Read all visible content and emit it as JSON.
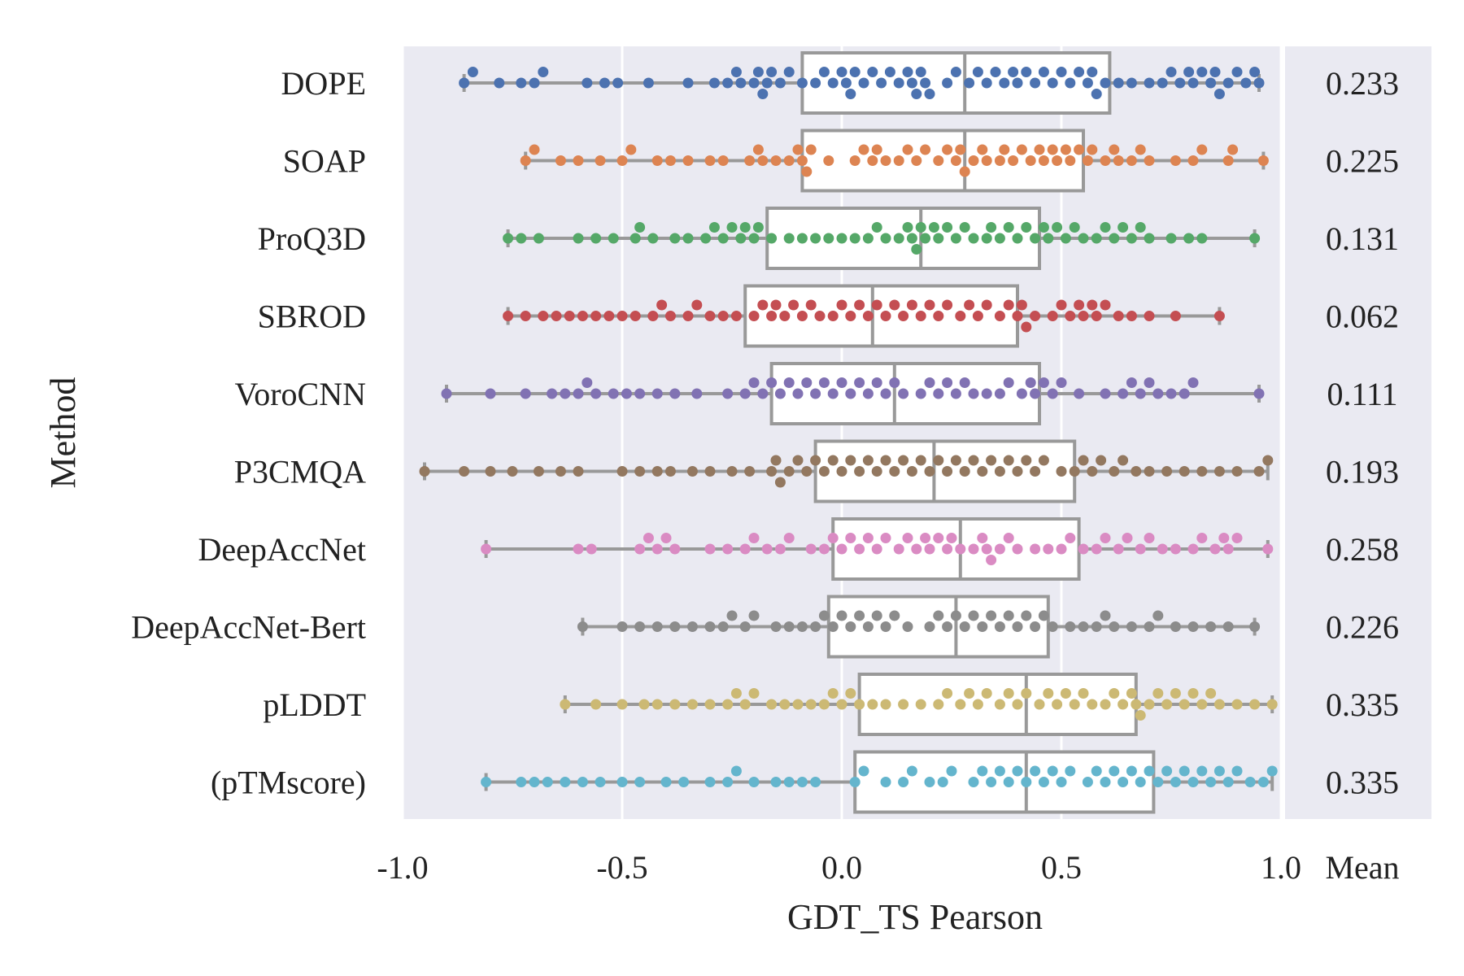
{
  "chart_data": {
    "type": "box+swarm",
    "orientation": "horizontal",
    "xlabel": "GDT_TS Pearson",
    "ylabel": "Method",
    "xlim": [
      -1.0,
      1.0
    ],
    "xticks": [
      {
        "value": -1.0,
        "label": "-1.0"
      },
      {
        "value": -0.5,
        "label": "-0.5"
      },
      {
        "value": 0.0,
        "label": "0.0"
      },
      {
        "value": 0.5,
        "label": "0.5"
      },
      {
        "value": 1.0,
        "label": "1.0"
      }
    ],
    "mean_header": "Mean",
    "grid": true,
    "series": [
      {
        "name": "DOPE",
        "color": "#4c72b0",
        "mean": "0.233",
        "box": {
          "min": -0.86,
          "q1": -0.09,
          "median": 0.28,
          "q3": 0.61,
          "max": 0.95
        },
        "points": [
          -0.86,
          -0.84,
          -0.78,
          -0.73,
          -0.7,
          -0.68,
          -0.58,
          -0.54,
          -0.51,
          -0.44,
          -0.35,
          -0.29,
          -0.26,
          -0.24,
          -0.23,
          -0.2,
          -0.19,
          -0.18,
          -0.17,
          -0.16,
          -0.14,
          -0.12,
          -0.09,
          -0.06,
          -0.04,
          -0.02,
          0.0,
          0.01,
          0.02,
          0.03,
          0.05,
          0.07,
          0.09,
          0.11,
          0.13,
          0.15,
          0.16,
          0.17,
          0.18,
          0.19,
          0.2,
          0.24,
          0.26,
          0.29,
          0.31,
          0.33,
          0.35,
          0.37,
          0.39,
          0.4,
          0.42,
          0.44,
          0.46,
          0.48,
          0.5,
          0.52,
          0.54,
          0.56,
          0.57,
          0.58,
          0.6,
          0.63,
          0.66,
          0.7,
          0.73,
          0.75,
          0.77,
          0.79,
          0.8,
          0.82,
          0.84,
          0.85,
          0.86,
          0.88,
          0.9,
          0.92,
          0.94,
          0.95
        ]
      },
      {
        "name": "SOAP",
        "color": "#dd8452",
        "mean": "0.225",
        "box": {
          "min": -0.72,
          "q1": -0.09,
          "median": 0.28,
          "q3": 0.55,
          "max": 0.96
        },
        "points": [
          -0.72,
          -0.7,
          -0.64,
          -0.6,
          -0.55,
          -0.5,
          -0.48,
          -0.42,
          -0.39,
          -0.35,
          -0.3,
          -0.27,
          -0.21,
          -0.19,
          -0.18,
          -0.15,
          -0.12,
          -0.1,
          -0.09,
          -0.08,
          -0.07,
          -0.03,
          0.03,
          0.05,
          0.07,
          0.08,
          0.1,
          0.13,
          0.15,
          0.17,
          0.19,
          0.22,
          0.24,
          0.26,
          0.27,
          0.28,
          0.3,
          0.32,
          0.33,
          0.36,
          0.37,
          0.39,
          0.41,
          0.43,
          0.45,
          0.46,
          0.48,
          0.49,
          0.51,
          0.52,
          0.54,
          0.56,
          0.57,
          0.6,
          0.62,
          0.63,
          0.66,
          0.68,
          0.7,
          0.76,
          0.8,
          0.82,
          0.88,
          0.89,
          0.96
        ]
      },
      {
        "name": "ProQ3D",
        "color": "#55a868",
        "mean": "0.131",
        "box": {
          "min": -0.76,
          "q1": -0.17,
          "median": 0.18,
          "q3": 0.45,
          "max": 0.94
        },
        "points": [
          -0.76,
          -0.73,
          -0.69,
          -0.6,
          -0.56,
          -0.52,
          -0.47,
          -0.46,
          -0.43,
          -0.38,
          -0.35,
          -0.31,
          -0.29,
          -0.27,
          -0.25,
          -0.23,
          -0.22,
          -0.2,
          -0.19,
          -0.16,
          -0.12,
          -0.09,
          -0.06,
          -0.03,
          0.0,
          0.03,
          0.06,
          0.08,
          0.1,
          0.13,
          0.15,
          0.16,
          0.17,
          0.18,
          0.19,
          0.21,
          0.22,
          0.24,
          0.26,
          0.28,
          0.3,
          0.33,
          0.34,
          0.36,
          0.38,
          0.4,
          0.42,
          0.44,
          0.46,
          0.47,
          0.49,
          0.51,
          0.53,
          0.55,
          0.58,
          0.6,
          0.62,
          0.64,
          0.66,
          0.68,
          0.7,
          0.75,
          0.79,
          0.82,
          0.94
        ]
      },
      {
        "name": "SBROD",
        "color": "#c44e52",
        "mean": "0.062",
        "box": {
          "min": -0.76,
          "q1": -0.22,
          "median": 0.07,
          "q3": 0.4,
          "max": 0.86
        },
        "points": [
          -0.76,
          -0.72,
          -0.68,
          -0.65,
          -0.62,
          -0.59,
          -0.56,
          -0.53,
          -0.5,
          -0.47,
          -0.43,
          -0.41,
          -0.39,
          -0.35,
          -0.33,
          -0.3,
          -0.27,
          -0.24,
          -0.2,
          -0.18,
          -0.16,
          -0.15,
          -0.13,
          -0.11,
          -0.09,
          -0.07,
          -0.05,
          -0.02,
          0.0,
          0.02,
          0.04,
          0.06,
          0.08,
          0.1,
          0.12,
          0.14,
          0.16,
          0.18,
          0.2,
          0.22,
          0.24,
          0.27,
          0.29,
          0.31,
          0.33,
          0.36,
          0.38,
          0.4,
          0.41,
          0.42,
          0.44,
          0.48,
          0.5,
          0.52,
          0.54,
          0.55,
          0.57,
          0.58,
          0.6,
          0.63,
          0.66,
          0.7,
          0.76,
          0.86
        ]
      },
      {
        "name": "VoroCNN",
        "color": "#8172b3",
        "mean": "0.111",
        "box": {
          "min": -0.9,
          "q1": -0.16,
          "median": 0.12,
          "q3": 0.45,
          "max": 0.95
        },
        "points": [
          -0.9,
          -0.8,
          -0.72,
          -0.66,
          -0.63,
          -0.6,
          -0.58,
          -0.56,
          -0.52,
          -0.49,
          -0.46,
          -0.42,
          -0.38,
          -0.33,
          -0.26,
          -0.22,
          -0.2,
          -0.18,
          -0.16,
          -0.14,
          -0.12,
          -0.1,
          -0.08,
          -0.06,
          -0.04,
          -0.02,
          0.0,
          0.02,
          0.04,
          0.06,
          0.08,
          0.1,
          0.12,
          0.14,
          0.18,
          0.2,
          0.22,
          0.24,
          0.26,
          0.28,
          0.3,
          0.33,
          0.36,
          0.38,
          0.41,
          0.43,
          0.44,
          0.46,
          0.48,
          0.5,
          0.54,
          0.6,
          0.64,
          0.66,
          0.68,
          0.7,
          0.72,
          0.75,
          0.78,
          0.8,
          0.95
        ]
      },
      {
        "name": "P3CMQA",
        "color": "#937860",
        "mean": "0.193",
        "box": {
          "min": -0.95,
          "q1": -0.06,
          "median": 0.21,
          "q3": 0.53,
          "max": 0.97
        },
        "points": [
          -0.95,
          -0.86,
          -0.8,
          -0.75,
          -0.69,
          -0.64,
          -0.6,
          -0.5,
          -0.46,
          -0.42,
          -0.39,
          -0.34,
          -0.3,
          -0.25,
          -0.21,
          -0.16,
          -0.15,
          -0.14,
          -0.12,
          -0.1,
          -0.08,
          -0.06,
          -0.04,
          -0.02,
          0.0,
          0.02,
          0.04,
          0.06,
          0.08,
          0.1,
          0.12,
          0.14,
          0.16,
          0.18,
          0.2,
          0.22,
          0.24,
          0.26,
          0.28,
          0.3,
          0.32,
          0.34,
          0.36,
          0.38,
          0.4,
          0.42,
          0.44,
          0.46,
          0.5,
          0.53,
          0.55,
          0.57,
          0.59,
          0.62,
          0.64,
          0.67,
          0.7,
          0.74,
          0.78,
          0.82,
          0.86,
          0.9,
          0.95,
          0.97
        ]
      },
      {
        "name": "DeepAccNet",
        "color": "#da8bc3",
        "mean": "0.258",
        "box": {
          "min": -0.81,
          "q1": -0.02,
          "median": 0.27,
          "q3": 0.54,
          "max": 0.97
        },
        "points": [
          -0.81,
          -0.6,
          -0.57,
          -0.46,
          -0.44,
          -0.42,
          -0.4,
          -0.38,
          -0.3,
          -0.26,
          -0.22,
          -0.2,
          -0.17,
          -0.14,
          -0.12,
          -0.07,
          -0.04,
          -0.02,
          0.0,
          0.02,
          0.04,
          0.06,
          0.08,
          0.1,
          0.13,
          0.15,
          0.17,
          0.19,
          0.2,
          0.22,
          0.24,
          0.25,
          0.27,
          0.3,
          0.32,
          0.33,
          0.34,
          0.36,
          0.38,
          0.4,
          0.44,
          0.47,
          0.5,
          0.52,
          0.55,
          0.58,
          0.6,
          0.63,
          0.65,
          0.68,
          0.7,
          0.73,
          0.76,
          0.8,
          0.82,
          0.85,
          0.87,
          0.88,
          0.9,
          0.97
        ]
      },
      {
        "name": "DeepAccNet-Bert",
        "color": "#8c8c8c",
        "mean": "0.226",
        "box": {
          "min": -0.59,
          "q1": -0.03,
          "median": 0.26,
          "q3": 0.47,
          "max": 0.94
        },
        "points": [
          -0.59,
          -0.5,
          -0.46,
          -0.42,
          -0.38,
          -0.34,
          -0.3,
          -0.27,
          -0.25,
          -0.22,
          -0.2,
          -0.15,
          -0.12,
          -0.09,
          -0.06,
          -0.04,
          -0.02,
          0.0,
          0.02,
          0.04,
          0.06,
          0.08,
          0.1,
          0.12,
          0.15,
          0.2,
          0.22,
          0.24,
          0.26,
          0.28,
          0.3,
          0.32,
          0.34,
          0.36,
          0.38,
          0.4,
          0.42,
          0.44,
          0.46,
          0.48,
          0.52,
          0.55,
          0.58,
          0.6,
          0.62,
          0.66,
          0.7,
          0.72,
          0.76,
          0.8,
          0.84,
          0.88,
          0.94
        ]
      },
      {
        "name": "pLDDT",
        "color": "#ccb974",
        "mean": "0.335",
        "box": {
          "min": -0.63,
          "q1": 0.04,
          "median": 0.42,
          "q3": 0.67,
          "max": 0.98
        },
        "points": [
          -0.63,
          -0.56,
          -0.5,
          -0.45,
          -0.42,
          -0.38,
          -0.34,
          -0.3,
          -0.26,
          -0.24,
          -0.22,
          -0.2,
          -0.16,
          -0.13,
          -0.1,
          -0.07,
          -0.04,
          -0.02,
          0.0,
          0.02,
          0.04,
          0.07,
          0.1,
          0.14,
          0.18,
          0.22,
          0.24,
          0.27,
          0.29,
          0.31,
          0.33,
          0.36,
          0.38,
          0.4,
          0.42,
          0.45,
          0.47,
          0.49,
          0.51,
          0.53,
          0.55,
          0.57,
          0.6,
          0.62,
          0.64,
          0.66,
          0.67,
          0.68,
          0.7,
          0.72,
          0.74,
          0.76,
          0.78,
          0.8,
          0.82,
          0.84,
          0.86,
          0.9,
          0.94,
          0.98
        ]
      },
      {
        "name": "(pTMscore)",
        "color": "#64b5cd",
        "mean": "0.335",
        "box": {
          "min": -0.81,
          "q1": 0.03,
          "median": 0.42,
          "q3": 0.71,
          "max": 0.98
        },
        "points": [
          -0.81,
          -0.73,
          -0.7,
          -0.67,
          -0.63,
          -0.59,
          -0.55,
          -0.5,
          -0.46,
          -0.4,
          -0.36,
          -0.3,
          -0.26,
          -0.24,
          -0.2,
          -0.15,
          -0.12,
          -0.09,
          -0.06,
          0.03,
          0.05,
          0.1,
          0.14,
          0.16,
          0.2,
          0.23,
          0.25,
          0.3,
          0.32,
          0.34,
          0.36,
          0.38,
          0.4,
          0.42,
          0.44,
          0.46,
          0.48,
          0.5,
          0.52,
          0.56,
          0.58,
          0.6,
          0.62,
          0.64,
          0.66,
          0.68,
          0.7,
          0.72,
          0.74,
          0.76,
          0.78,
          0.8,
          0.82,
          0.84,
          0.86,
          0.88,
          0.9,
          0.93,
          0.96,
          0.98
        ]
      }
    ]
  }
}
